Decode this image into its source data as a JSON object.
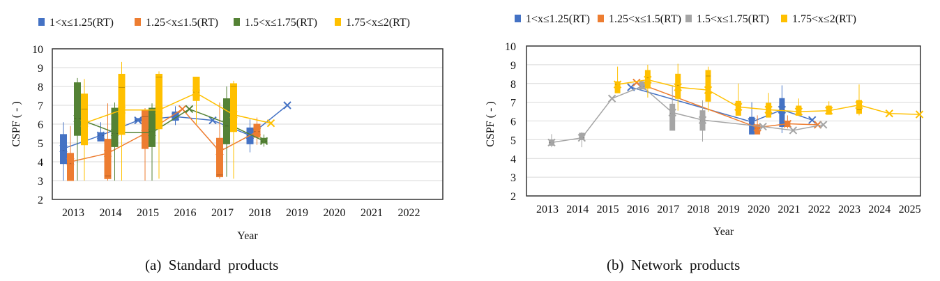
{
  "captions": [
    "(a)  Standard  products",
    "(b)  Network  products"
  ],
  "colors": {
    "s1": "#4472c4",
    "s2": "#ed7d31",
    "s3a": "#548235",
    "s3b": "#a5a5a5",
    "s4": "#ffc000"
  },
  "chart_data": [
    {
      "type": "box",
      "title": "(a)  Standard  products",
      "xlabel": "Year",
      "ylabel": "CSPF ( - )",
      "ylim": [
        2,
        10
      ],
      "categories": [
        "2013",
        "2014",
        "2015",
        "2016",
        "2017",
        "2018",
        "2019",
        "2020",
        "2021",
        "2022"
      ],
      "legend_position": "top",
      "series": [
        {
          "name": "1<x≤1.25(RT)",
          "color": "#4472c4",
          "boxes": {
            "2013": [
              3,
              3.9,
              4.6,
              5.45,
              6.1,
              4.7
            ],
            "2014": [
              5.1,
              5.1,
              5.4,
              5.55,
              6.1,
              5.4
            ],
            "2015": [
              6.15,
              6.15,
              6.2,
              6.3,
              6.3,
              6.2
            ],
            "2016": [
              5.95,
              6.2,
              6.4,
              6.65,
              6.95,
              6.4
            ],
            "2017": [
              null,
              null,
              null,
              null,
              null,
              6.2
            ],
            "2018": [
              4.5,
              4.95,
              5.4,
              5.8,
              6.25,
              5.4
            ],
            "2019": [
              null,
              null,
              null,
              null,
              null,
              7.0
            ]
          }
        },
        {
          "name": "1.25<x≤1.5(RT)",
          "color": "#ed7d31",
          "boxes": {
            "2013": [
              3,
              3,
              3.9,
              4.45,
              5.9,
              4.0
            ],
            "2014": [
              3,
              3.1,
              3.25,
              5.2,
              7.1,
              4.45
            ],
            "2015": [
              3,
              4.7,
              6.4,
              6.75,
              6.85,
              5.5
            ],
            "2016": [
              null,
              null,
              null,
              null,
              null,
              6.8
            ],
            "2017": [
              3.1,
              3.2,
              3.3,
              5.25,
              7.15,
              4.55
            ],
            "2018": [
              4.9,
              5.3,
              5.6,
              6.0,
              6.35,
              5.6
            ]
          }
        },
        {
          "name": "1.5<x≤1.75(RT)",
          "color": "#548235",
          "boxes": {
            "2013": [
              3,
              5.4,
              6.3,
              8.2,
              8.45,
              6.3
            ],
            "2014": [
              3,
              4.8,
              5.5,
              6.85,
              7.15,
              5.55
            ],
            "2015": [
              3,
              4.8,
              5.6,
              6.85,
              7.1,
              5.55
            ],
            "2016": [
              null,
              null,
              null,
              null,
              null,
              6.8
            ],
            "2017": [
              3.2,
              4.95,
              5.9,
              7.35,
              8.0,
              6.05
            ],
            "2018": [
              4.8,
              5.0,
              5.1,
              5.25,
              5.45,
              5.1
            ]
          }
        },
        {
          "name": "1.75<x≤2(RT)",
          "color": "#ffc000",
          "boxes": {
            "2013": [
              3,
              4.9,
              6.8,
              7.6,
              8.4,
              6.05
            ],
            "2014": [
              3,
              5.45,
              7.95,
              8.65,
              9.3,
              6.75
            ],
            "2015": [
              3.1,
              5.75,
              8.5,
              8.65,
              8.8,
              6.75
            ],
            "2016": [
              6,
              7.25,
              7.7,
              8.5,
              8.5,
              7.65
            ],
            "2017": [
              3.1,
              5.6,
              8.0,
              8.15,
              8.3,
              6.5
            ],
            "2018": [
              null,
              null,
              null,
              null,
              null,
              6.05
            ]
          }
        }
      ],
      "value_order": [
        "min",
        "q1",
        "median",
        "q3",
        "max",
        "mean"
      ]
    },
    {
      "type": "box",
      "title": "(b)  Network  products",
      "xlabel": "Year",
      "ylabel": "CSPF ( - )",
      "ylim": [
        2,
        10
      ],
      "categories": [
        "2013",
        "2014",
        "2015",
        "2016",
        "2017",
        "2018",
        "2019",
        "2020",
        "2021",
        "2022",
        "2023",
        "2024",
        "2025"
      ],
      "legend_position": "top",
      "series": [
        {
          "name": "1<x≤1.25(RT)",
          "color": "#4472c4",
          "boxes": {
            "2016": [
              null,
              null,
              null,
              null,
              null,
              7.8
            ],
            "2020": [
              5.3,
              5.3,
              5.9,
              6.2,
              7.0,
              5.95
            ],
            "2021": [
              5.35,
              5.7,
              6.6,
              7.2,
              7.9,
              6.6
            ],
            "2022": [
              null,
              null,
              null,
              null,
              null,
              6.05
            ]
          }
        },
        {
          "name": "1.25<x≤1.5(RT)",
          "color": "#ed7d31",
          "boxes": {
            "2016": [
              null,
              null,
              null,
              null,
              null,
              8.05
            ],
            "2020": [
              5.3,
              5.3,
              5.6,
              5.8,
              6.3,
              5.65
            ],
            "2021": [
              5.6,
              5.7,
              5.85,
              6.0,
              6.3,
              5.85
            ],
            "2022": [
              null,
              null,
              null,
              null,
              null,
              5.8
            ]
          }
        },
        {
          "name": "1.5<x≤1.75(RT)",
          "color": "#a5a5a5",
          "boxes": {
            "2013": [
              4.6,
              4.7,
              4.85,
              5.0,
              5.3,
              4.85
            ],
            "2014": [
              4.6,
              5.0,
              5.1,
              5.35,
              5.4,
              5.1
            ],
            "2015": [
              null,
              null,
              null,
              null,
              null,
              7.2
            ],
            "2016": [
              7.7,
              7.7,
              7.85,
              8.1,
              8.1,
              7.85
            ],
            "2017": [
              5.5,
              5.5,
              6.4,
              6.9,
              7.9,
              6.45
            ],
            "2018": [
              4.9,
              5.5,
              6.0,
              6.55,
              7.1,
              6.05
            ],
            "2020": [
              null,
              null,
              null,
              null,
              null,
              5.7
            ],
            "2021": [
              null,
              null,
              null,
              null,
              null,
              5.5
            ],
            "2022": [
              null,
              null,
              null,
              null,
              null,
              5.8
            ]
          }
        },
        {
          "name": "1.75<x≤2(RT)",
          "color": "#ffc000",
          "boxes": {
            "2015": [
              7.5,
              7.5,
              7.95,
              8.1,
              8.9,
              7.95
            ],
            "2016": [
              7.25,
              7.75,
              8.3,
              8.7,
              9.0,
              8.2
            ],
            "2017": [
              6.55,
              7.2,
              7.9,
              8.5,
              9.05,
              7.8
            ],
            "2018": [
              6.5,
              7.05,
              8.4,
              8.7,
              8.9,
              7.65
            ],
            "2019": [
              6.3,
              6.3,
              6.8,
              7.05,
              8.0,
              6.75
            ],
            "2020": [
              6.2,
              6.2,
              6.6,
              6.95,
              7.5,
              6.6
            ],
            "2021": [
              6.3,
              6.3,
              6.5,
              6.8,
              7.2,
              6.5
            ],
            "2022": [
              6.35,
              6.35,
              6.55,
              6.8,
              7.05,
              6.55
            ],
            "2023": [
              6.3,
              6.4,
              6.6,
              7.1,
              7.95,
              6.85
            ],
            "2024": [
              null,
              null,
              null,
              null,
              null,
              6.4
            ],
            "2025": [
              null,
              null,
              null,
              null,
              null,
              6.35
            ]
          }
        }
      ],
      "value_order": [
        "min",
        "q1",
        "median",
        "q3",
        "max",
        "mean"
      ]
    }
  ]
}
